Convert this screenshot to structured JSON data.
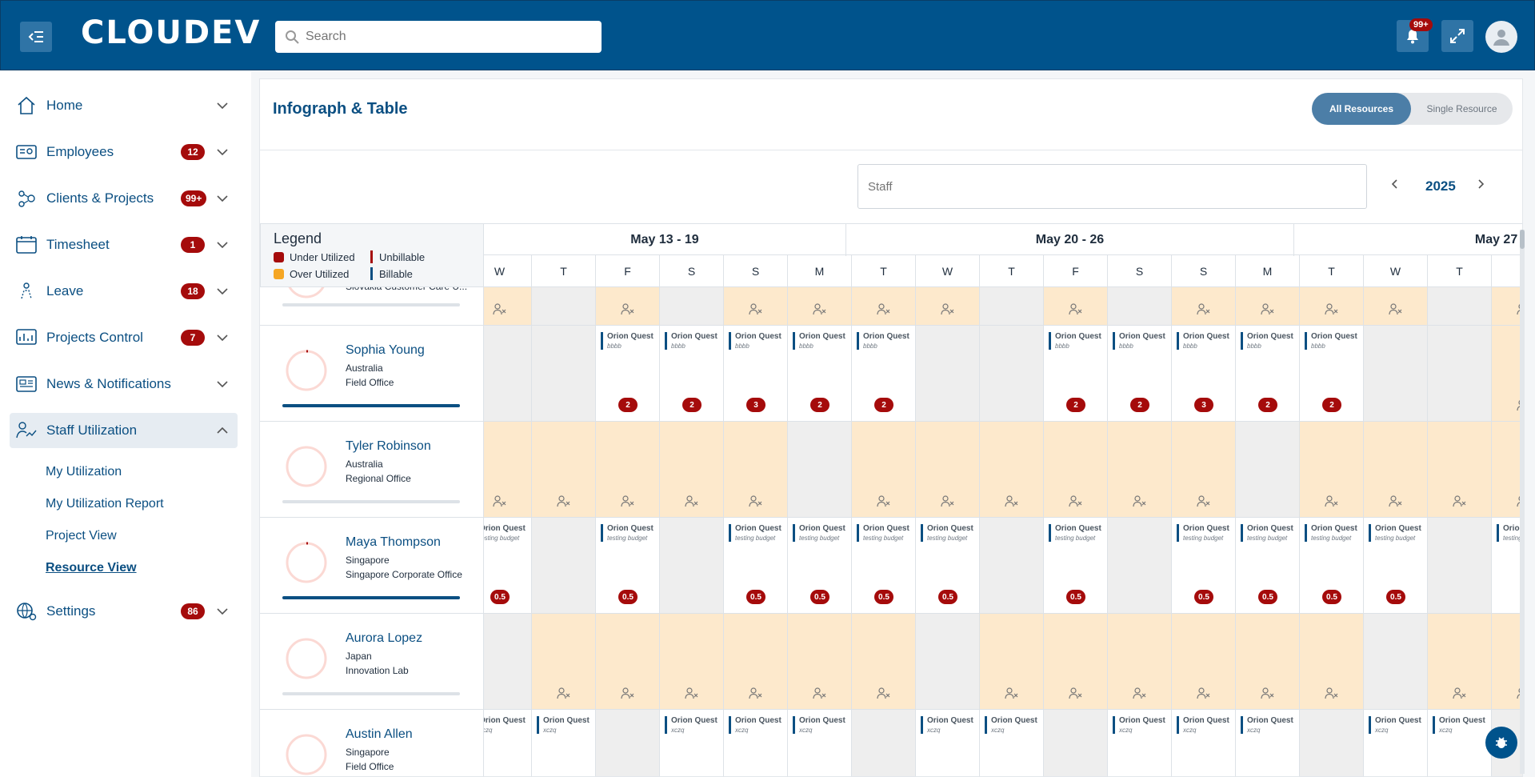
{
  "header": {
    "logo": "CLOUDEV",
    "search_placeholder": "Search",
    "notifications_badge": "99+"
  },
  "sidebar": {
    "items": [
      {
        "label": "Home",
        "badge": ""
      },
      {
        "label": "Employees",
        "badge": "12"
      },
      {
        "label": "Clients & Projects",
        "badge": "99+"
      },
      {
        "label": "Timesheet",
        "badge": "1"
      },
      {
        "label": "Leave",
        "badge": "18"
      },
      {
        "label": "Projects Control",
        "badge": "7"
      },
      {
        "label": "News & Notifications",
        "badge": ""
      },
      {
        "label": "Staff Utilization",
        "badge": ""
      },
      {
        "label": "Settings",
        "badge": "86"
      }
    ],
    "subitems": [
      "My Utilization",
      "My Utilization Report",
      "Project View",
      "Resource View"
    ]
  },
  "main": {
    "title": "Infograph & Table",
    "toggle": {
      "on": "All Resources",
      "off": "Single Resource"
    },
    "staff_placeholder": "Staff",
    "year": "2025"
  },
  "legend": {
    "title": "Legend",
    "under_utilized": "Under Utilized",
    "over_utilized": "Over Utilized",
    "unbillable": "Unbillable",
    "billable": "Billable",
    "colors": {
      "under": "#a50b0b",
      "over": "#f5a623",
      "unbillable": "#a50b0b",
      "billable": "#0b4f82"
    }
  },
  "weeks": [
    "May 13 - 19",
    "May 20 - 26",
    "May 27 -"
  ],
  "days": [
    "W",
    "T",
    "F",
    "S",
    "S",
    "M",
    "T",
    "W",
    "T",
    "F",
    "S",
    "S",
    "M",
    "T",
    "W",
    "T",
    "F"
  ],
  "resources": [
    {
      "name": "",
      "country": "",
      "office": "Slovakia Customer Care U...",
      "util": 0,
      "pattern": [
        "leave",
        "weekend",
        "leave",
        "weekend",
        "leave",
        "leave",
        "leave",
        "leave",
        "weekend",
        "leave",
        "weekend",
        "leave",
        "leave",
        "leave",
        "leave",
        "weekend",
        "leave"
      ],
      "project": "",
      "budget": "",
      "hours": ""
    },
    {
      "name": "Sophia Young",
      "country": "Australia",
      "office": "Field Office",
      "util": 0.82,
      "pattern": [
        "weekend",
        "weekend",
        "work",
        "work",
        "work",
        "work",
        "work",
        "weekend",
        "weekend",
        "work",
        "work",
        "work",
        "work",
        "work",
        "weekend",
        "weekend",
        "leave"
      ],
      "project": "Orion Quest",
      "budget": "bbbb",
      "hours": [
        "",
        "",
        "2",
        "2",
        "3",
        "2",
        "2",
        "",
        "",
        "2",
        "2",
        "3",
        "2",
        "2",
        "",
        "",
        ""
      ]
    },
    {
      "name": "Tyler Robinson",
      "country": "Australia",
      "office": "Regional Office",
      "util": 0,
      "pattern": [
        "leave",
        "leave",
        "leave",
        "leave",
        "leave",
        "weekend",
        "leave",
        "leave",
        "leave",
        "leave",
        "leave",
        "leave",
        "weekend",
        "leave",
        "leave",
        "leave",
        "leave"
      ],
      "project": "",
      "budget": "",
      "hours": ""
    },
    {
      "name": "Maya Thompson",
      "country": "Singapore",
      "office": "Singapore Corporate Office",
      "util": 0.82,
      "pattern": [
        "work",
        "weekend",
        "work",
        "weekend",
        "work",
        "work",
        "work",
        "work",
        "weekend",
        "work",
        "weekend",
        "work",
        "work",
        "work",
        "work",
        "weekend",
        "work"
      ],
      "project": "Orion Quest",
      "budget": "testing budget",
      "hours": [
        "0.5",
        "",
        "0.5",
        "",
        "0.5",
        "0.5",
        "0.5",
        "0.5",
        "",
        "0.5",
        "",
        "0.5",
        "0.5",
        "0.5",
        "0.5",
        "",
        ""
      ]
    },
    {
      "name": "Aurora Lopez",
      "country": "Japan",
      "office": "Innovation Lab",
      "util": 0,
      "pattern": [
        "weekend",
        "leave",
        "leave",
        "leave",
        "leave",
        "leave",
        "leave",
        "weekend",
        "leave",
        "leave",
        "leave",
        "leave",
        "leave",
        "leave",
        "weekend",
        "leave",
        "leave"
      ],
      "project": "",
      "budget": "",
      "hours": ""
    },
    {
      "name": "Austin Allen",
      "country": "Singapore",
      "office": "Field Office",
      "util": 0,
      "pattern": [
        "work",
        "work",
        "weekend",
        "work",
        "work",
        "work",
        "weekend",
        "work",
        "work",
        "weekend",
        "work",
        "work",
        "work",
        "weekend",
        "work",
        "work",
        "weekend"
      ],
      "project": "Orion Quest",
      "budget": "xczq",
      "hours": ""
    }
  ],
  "projects": {
    "sophia": {
      "name": "Orion Quest",
      "budget": "bbbb"
    },
    "maya": {
      "name": "Orion Quest",
      "budget": "testing budget"
    },
    "austin": {
      "name": "Orion Quest",
      "budget": "xczq"
    }
  }
}
